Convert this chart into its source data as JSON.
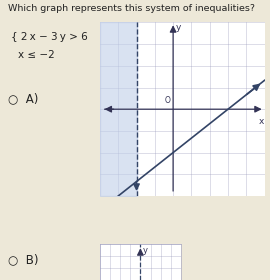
{
  "background_color": "#ede8d8",
  "graph_bg": "#ffffff",
  "shade_color": "#c0cfe8",
  "shade_alpha": 0.6,
  "xlim": [
    -4,
    5
  ],
  "ylim": [
    -4,
    4
  ],
  "grid_color": "#9999bb",
  "axis_color": "#333355",
  "line_color": "#334466",
  "vertical_line_x": -2,
  "font_color": "#222222",
  "title_fontsize": 6.8,
  "ineq_fontsize": 7.5,
  "label_fontsize": 8.5
}
